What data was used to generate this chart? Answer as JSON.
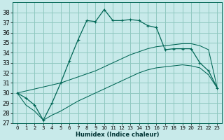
{
  "xlabel": "Humidex (Indice chaleur)",
  "bg_color": "#c8eaea",
  "grid_color": "#90c8c0",
  "line_color": "#006655",
  "xlim": [
    -0.5,
    23.5
  ],
  "ylim": [
    27,
    39
  ],
  "xticks": [
    0,
    1,
    2,
    3,
    4,
    5,
    6,
    7,
    8,
    9,
    10,
    11,
    12,
    13,
    14,
    15,
    16,
    17,
    18,
    19,
    20,
    21,
    22,
    23
  ],
  "yticks": [
    27,
    28,
    29,
    30,
    31,
    32,
    33,
    34,
    35,
    36,
    37,
    38
  ],
  "line1_x": [
    0,
    1,
    2,
    3,
    4,
    5,
    6,
    7,
    8,
    9,
    10,
    11,
    12,
    13,
    14,
    15,
    16,
    17,
    18,
    19,
    20,
    21,
    22,
    23
  ],
  "line1_y": [
    30.0,
    29.5,
    28.8,
    27.3,
    29.0,
    31.0,
    33.2,
    35.3,
    37.2,
    37.1,
    38.3,
    37.2,
    37.2,
    37.3,
    37.2,
    36.7,
    36.5,
    34.3,
    34.4,
    34.4,
    34.4,
    33.0,
    32.2,
    30.5
  ],
  "line2_x": [
    0,
    1,
    2,
    3,
    4,
    5,
    6,
    7,
    8,
    9,
    10,
    11,
    12,
    13,
    14,
    15,
    16,
    17,
    18,
    19,
    20,
    21,
    22,
    23
  ],
  "line2_y": [
    30.0,
    30.2,
    30.4,
    30.6,
    30.8,
    31.0,
    31.3,
    31.6,
    31.9,
    32.2,
    32.6,
    33.0,
    33.4,
    33.8,
    34.1,
    34.4,
    34.6,
    34.7,
    34.8,
    34.9,
    34.9,
    34.7,
    34.3,
    30.5
  ],
  "line3_x": [
    0,
    1,
    2,
    3,
    4,
    5,
    6,
    7,
    8,
    9,
    10,
    11,
    12,
    13,
    14,
    15,
    16,
    17,
    18,
    19,
    20,
    21,
    22,
    23
  ],
  "line3_y": [
    30.0,
    28.8,
    28.2,
    27.3,
    27.8,
    28.2,
    28.7,
    29.2,
    29.6,
    30.0,
    30.4,
    30.8,
    31.2,
    31.6,
    32.0,
    32.3,
    32.5,
    32.6,
    32.7,
    32.8,
    32.7,
    32.5,
    31.8,
    30.5
  ]
}
